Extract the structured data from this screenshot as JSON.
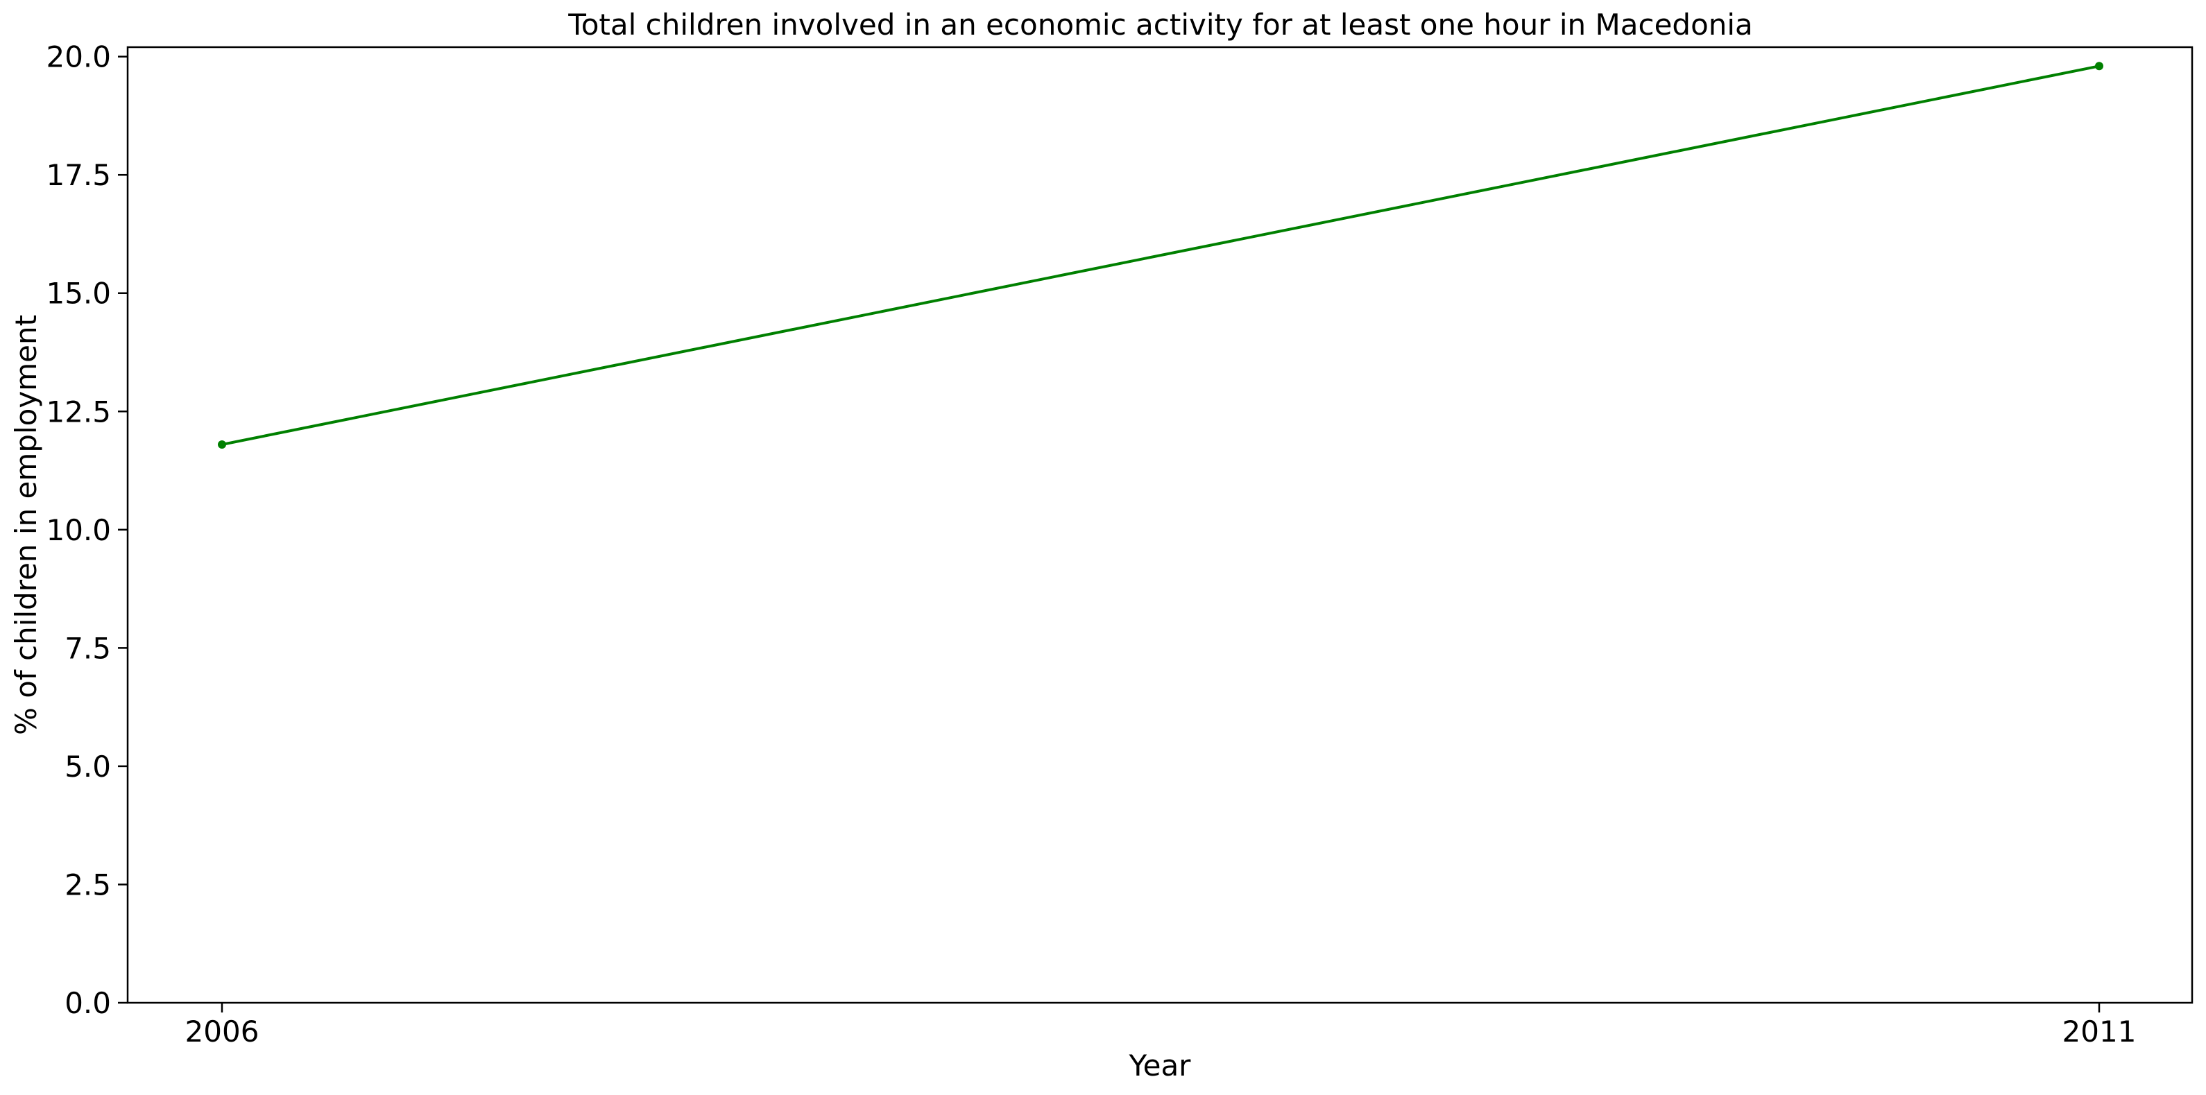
{
  "chart_data": {
    "type": "line",
    "title": "Total children involved in an economic activity for at least one hour in Macedonia",
    "xlabel": "Year",
    "ylabel": "% of children in employment",
    "x": [
      2006,
      2011
    ],
    "x_tick_labels": [
      "2006",
      "2011"
    ],
    "series": [
      {
        "values": [
          11.8,
          19.8
        ],
        "color": "#008000"
      }
    ],
    "ylim": [
      0,
      20.2
    ],
    "y_ticks": [
      0,
      2.5,
      5,
      7.5,
      10,
      12.5,
      15,
      17.5,
      20
    ],
    "y_tick_labels": [
      "0.0",
      "2.5",
      "5.0",
      "7.5",
      "10.0",
      "12.5",
      "15.0",
      "17.5",
      "20.0"
    ],
    "grid": false,
    "legend": "none"
  }
}
